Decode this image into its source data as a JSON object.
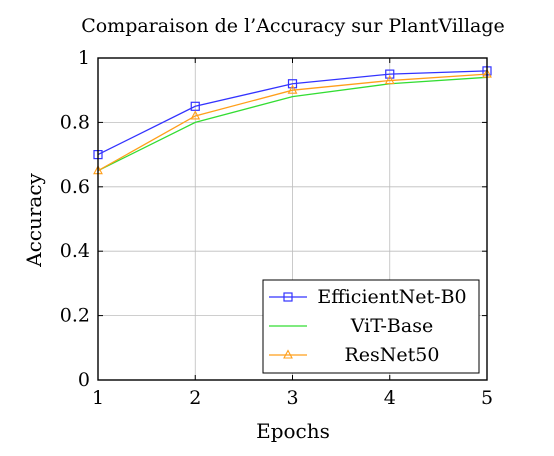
{
  "chart_data": {
    "type": "line",
    "title": "Comparaison de l’Accuracy sur PlantVillage",
    "xlabel": "Epochs",
    "ylabel": "Accuracy",
    "x": [
      1,
      2,
      3,
      4,
      5
    ],
    "xlim": [
      1,
      5
    ],
    "ylim": [
      0,
      1
    ],
    "xticks": [
      "1",
      "2",
      "3",
      "4",
      "5"
    ],
    "yticks": [
      "0",
      "0.2",
      "0.4",
      "0.6",
      "0.8",
      "1"
    ],
    "grid": true,
    "legend_position": "bottom-right",
    "series": [
      {
        "name": "EfficientNet-B0",
        "values": [
          0.7,
          0.85,
          0.92,
          0.95,
          0.96
        ],
        "color": "#3333ff",
        "marker": "square"
      },
      {
        "name": "ViT-Base",
        "values": [
          0.65,
          0.8,
          0.88,
          0.92,
          0.94
        ],
        "color": "#33dd33",
        "marker": "none"
      },
      {
        "name": "ResNet50",
        "values": [
          0.65,
          0.82,
          0.9,
          0.93,
          0.95
        ],
        "color": "#ff9f1a",
        "marker": "triangle"
      }
    ]
  }
}
